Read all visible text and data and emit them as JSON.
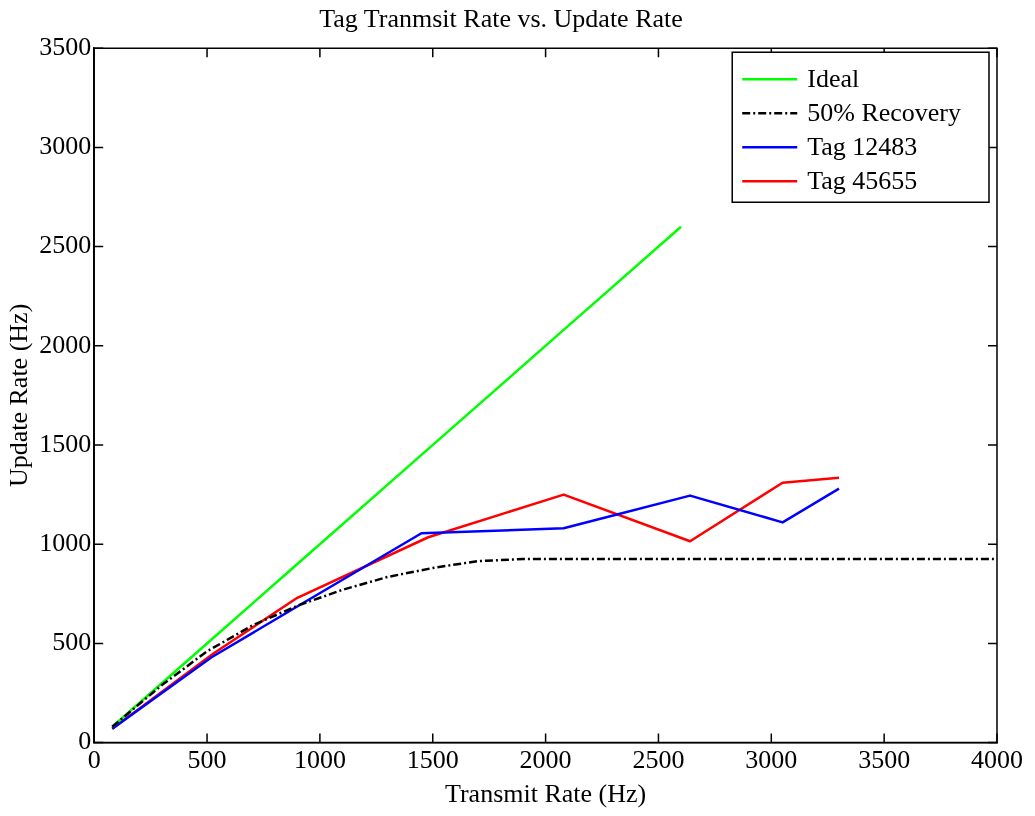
{
  "chart_data": {
    "type": "line",
    "title": "Tag Tranmsit Rate vs. Update Rate",
    "xlabel": "Transmit Rate (Hz)",
    "ylabel": "Update Rate (Hz)",
    "xlim": [
      0,
      4000
    ],
    "xticks": [
      0,
      500,
      1000,
      1500,
      2000,
      2500,
      3000,
      3500,
      4000
    ],
    "ylim": [
      0,
      3500
    ],
    "yticks": [
      0,
      500,
      1000,
      1500,
      2000,
      2500,
      3000,
      3500
    ],
    "grid": false,
    "legend": "top right",
    "marker": "none",
    "series": [
      {
        "name": "Ideal",
        "color": "#00ff00",
        "x": [
          80,
          530,
          900,
          1450,
          2080,
          2600
        ],
        "values": [
          80,
          530,
          900,
          1450,
          2080,
          2600
        ]
      },
      {
        "name": "50% Recovery",
        "color": "#000000",
        "line_style": "dashed",
        "x": [
          80,
          300,
          500,
          700,
          900,
          1100,
          1300,
          1500,
          1700,
          1900,
          4000
        ],
        "values": [
          80,
          290,
          460,
          590,
          690,
          770,
          835,
          880,
          915,
          925,
          925
        ]
      },
      {
        "name": "Tag 12483",
        "color": "#0000ff",
        "x": [
          80,
          520,
          920,
          1450,
          2080,
          2640,
          3050,
          3300
        ],
        "values": [
          70,
          430,
          700,
          1055,
          1080,
          1245,
          1110,
          1280
        ]
      },
      {
        "name": "Tag 45655",
        "color": "#ff0000",
        "x": [
          80,
          530,
          900,
          1480,
          2080,
          2640,
          3050,
          3300
        ],
        "values": [
          70,
          450,
          730,
          1035,
          1250,
          1015,
          1310,
          1335
        ]
      }
    ]
  }
}
